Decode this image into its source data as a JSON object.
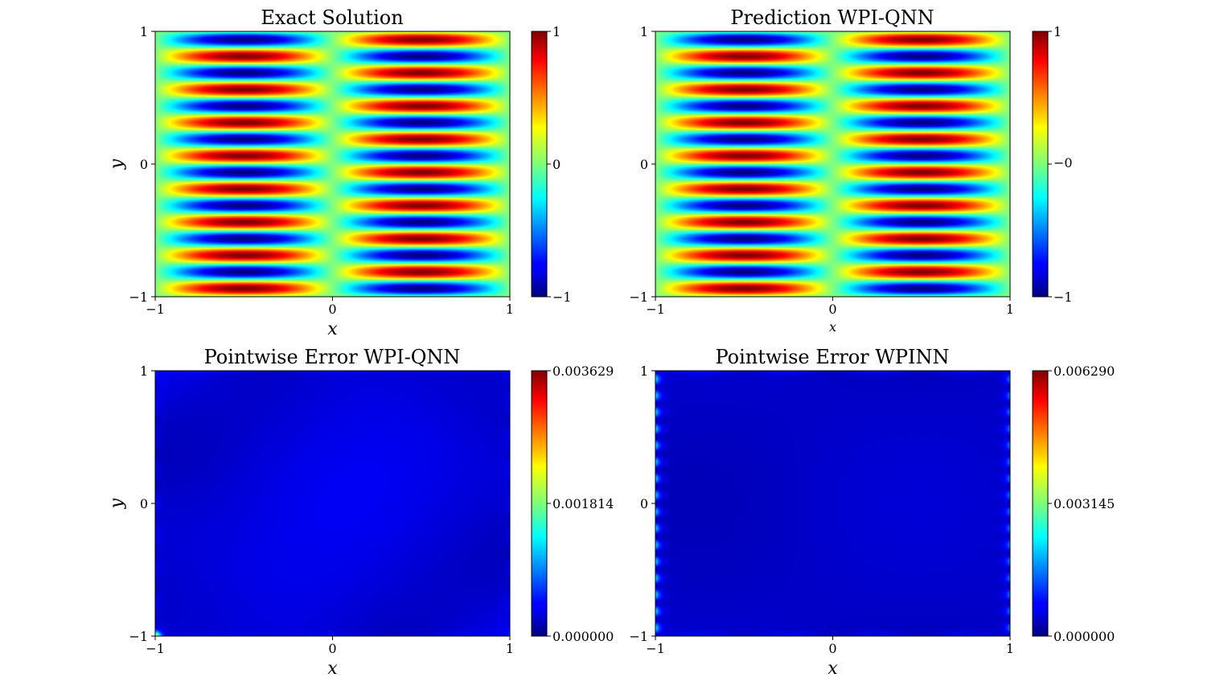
{
  "chart_data": [
    {
      "type": "heatmap",
      "title": "Exact Solution",
      "xlabel": "x",
      "ylabel": "y",
      "xlim": [
        -1,
        1
      ],
      "ylim": [
        -1,
        1
      ],
      "x_ticks": [
        "−1",
        "0",
        "1"
      ],
      "y_ticks": [
        "−1",
        "0",
        "1"
      ],
      "colormap": "jet",
      "field": "sin(pi*x) * sin(8*pi*y)",
      "colorbar": {
        "min": -1,
        "max": 1,
        "tick_labels": [
          "−1",
          "0",
          "1"
        ]
      }
    },
    {
      "type": "heatmap",
      "title": "Prediction WPI-QNN",
      "xlabel": "x",
      "ylabel": "",
      "xlim": [
        -1,
        1
      ],
      "ylim": [
        -1,
        1
      ],
      "x_ticks": [
        "−1",
        "0",
        "1"
      ],
      "y_ticks": [
        "−1",
        "0",
        "1"
      ],
      "colormap": "jet",
      "field": "sin(pi*x) * sin(8*pi*y)",
      "colorbar": {
        "min": -1,
        "max": 1,
        "tick_labels": [
          "−1",
          "−0",
          "1"
        ]
      }
    },
    {
      "type": "heatmap",
      "title": "Pointwise Error WPI-QNN",
      "xlabel": "x",
      "ylabel": "y",
      "xlim": [
        -1,
        1
      ],
      "ylim": [
        -1,
        1
      ],
      "x_ticks": [
        "−1",
        "0",
        "1"
      ],
      "y_ticks": [
        "−1",
        "0",
        "1"
      ],
      "colormap": "jet",
      "field": "pointwise absolute error, near zero in interior, small peaks at boundaries",
      "colorbar": {
        "min": 0.0,
        "max": 0.003629,
        "tick_labels": [
          "0.000000",
          "0.001814",
          "0.003629"
        ]
      }
    },
    {
      "type": "heatmap",
      "title": "Pointwise Error WPINN",
      "xlabel": "x",
      "ylabel": "",
      "xlim": [
        -1,
        1
      ],
      "ylim": [
        -1,
        1
      ],
      "x_ticks": [
        "−1",
        "0",
        "1"
      ],
      "y_ticks": [
        "−1",
        "0",
        "1"
      ],
      "colormap": "jet",
      "field": "pointwise absolute error, near zero in interior, periodic peaks along boundaries",
      "colorbar": {
        "min": 0.0,
        "max": 0.00629,
        "tick_labels": [
          "0.000000",
          "0.003145",
          "0.006290"
        ]
      }
    }
  ]
}
